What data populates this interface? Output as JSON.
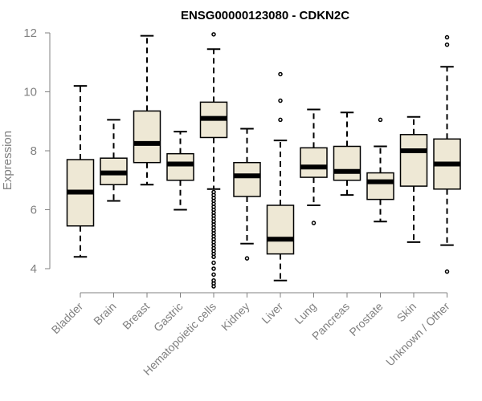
{
  "chart_data": {
    "type": "boxplot",
    "title": "ENSG00000123080 - CDKN2C",
    "xlabel": "",
    "ylabel": "Expression",
    "ylim": [
      3.3,
      12.2
    ],
    "yticks": [
      4,
      6,
      8,
      10,
      12
    ],
    "box_fill": "#EEE8D5",
    "categories": [
      "Bladder",
      "Brain",
      "Breast",
      "Gastric",
      "Hematopoietic cells",
      "Kidney",
      "Liver",
      "Lung",
      "Pancreas",
      "Prostate",
      "Skin",
      "Unknown / Other"
    ],
    "boxes": [
      {
        "min": 4.4,
        "q1": 5.45,
        "median": 6.6,
        "q3": 7.7,
        "max": 10.2,
        "outliers": []
      },
      {
        "min": 6.3,
        "q1": 6.85,
        "median": 7.25,
        "q3": 7.75,
        "max": 9.05,
        "outliers": []
      },
      {
        "min": 6.85,
        "q1": 7.6,
        "median": 8.25,
        "q3": 9.35,
        "max": 11.9,
        "outliers": []
      },
      {
        "min": 6.0,
        "q1": 7.0,
        "median": 7.55,
        "q3": 7.9,
        "max": 8.65,
        "outliers": []
      },
      {
        "min": 6.7,
        "q1": 8.45,
        "median": 9.1,
        "q3": 9.65,
        "max": 11.45,
        "outliers": [
          11.95,
          6.6,
          6.5,
          6.4,
          6.3,
          6.2,
          6.1,
          6.0,
          5.9,
          5.8,
          5.7,
          5.6,
          5.5,
          5.4,
          5.3,
          5.2,
          5.1,
          5.0,
          4.9,
          4.8,
          4.7,
          4.6,
          4.5,
          4.4,
          4.2,
          4.0,
          3.8,
          3.6,
          3.5,
          3.4
        ]
      },
      {
        "min": 4.85,
        "q1": 6.45,
        "median": 7.15,
        "q3": 7.6,
        "max": 8.75,
        "outliers": [
          4.35
        ]
      },
      {
        "min": 3.6,
        "q1": 4.5,
        "median": 5.0,
        "q3": 6.15,
        "max": 8.35,
        "outliers": [
          10.6,
          9.7,
          9.05
        ]
      },
      {
        "min": 6.15,
        "q1": 7.1,
        "median": 7.45,
        "q3": 8.1,
        "max": 9.4,
        "outliers": [
          5.55
        ]
      },
      {
        "min": 6.5,
        "q1": 7.0,
        "median": 7.3,
        "q3": 8.15,
        "max": 9.3,
        "outliers": []
      },
      {
        "min": 5.6,
        "q1": 6.35,
        "median": 6.95,
        "q3": 7.25,
        "max": 8.15,
        "outliers": [
          9.05
        ]
      },
      {
        "min": 4.9,
        "q1": 6.8,
        "median": 8.0,
        "q3": 8.55,
        "max": 9.15,
        "outliers": []
      },
      {
        "min": 4.8,
        "q1": 6.7,
        "median": 7.55,
        "q3": 8.4,
        "max": 10.85,
        "outliers": [
          11.85,
          11.6,
          3.9
        ]
      }
    ]
  }
}
